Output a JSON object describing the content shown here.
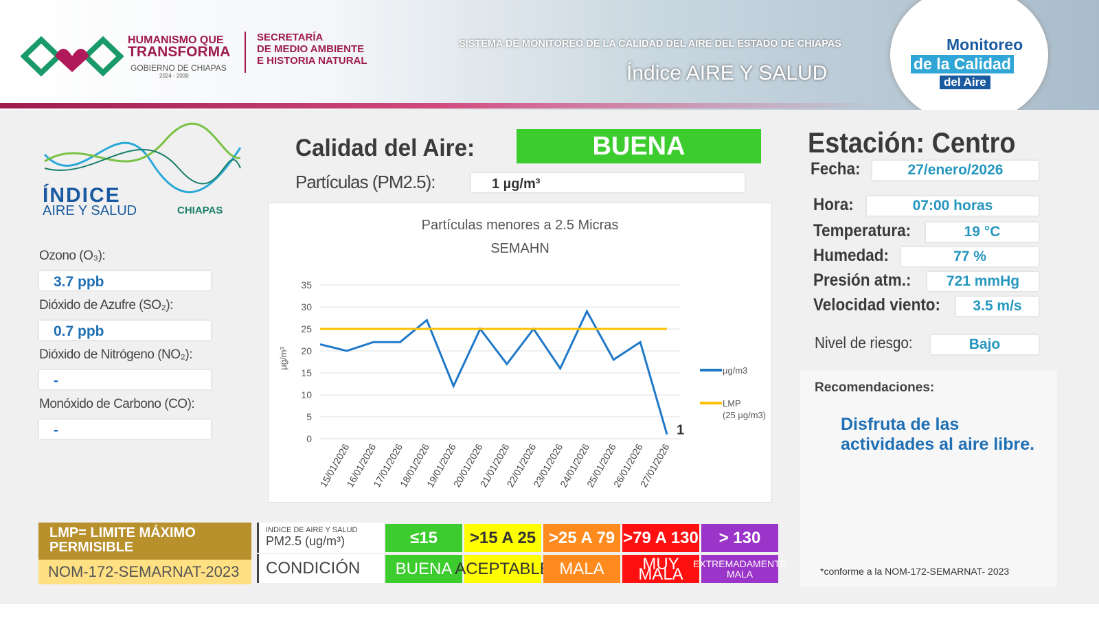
{
  "header": {
    "left_logo": [
      "HUMANISMO QUE",
      "TRANSFORMA",
      "GOBIERNO DE CHIAPAS",
      "2024 - 2030"
    ],
    "secretaria": [
      "SECRETARÍA",
      "DE MEDIO AMBIENTE",
      "E HISTORIA NATURAL"
    ],
    "system": "SISTEMA DE MONITOREO DE LA CALIDAD DEL AIRE DEL ESTADO DE CHIAPAS",
    "title": "Índice AIRE Y SALUD",
    "badge": [
      "Monitoreo",
      "de la Calidad",
      "del Aire"
    ]
  },
  "index_logo": [
    "ÍNDICE",
    "AIRE Y SALUD",
    "CHIAPAS"
  ],
  "pollutants": [
    {
      "label": "Ozono (O₃):",
      "value": "3.7 ppb"
    },
    {
      "label": "Dióxido de Azufre (SO₂):",
      "value": "0.7 ppb"
    },
    {
      "label": "Dióxido de Nitrógeno (NO₂):",
      "value": "-"
    },
    {
      "label": "Monóxido de Carbono (CO):",
      "value": "-"
    }
  ],
  "quality": {
    "label": "Calidad del Aire:",
    "value": "BUENA",
    "pm_label": "Partículas (PM2.5):",
    "pm_value": "1 µg/m³"
  },
  "chart_data": {
    "type": "line",
    "title": "Partículas menores a 2.5 Micras",
    "subtitle": "SEMAHN",
    "y_label": "µg/m³",
    "categories": [
      null,
      "15/01/2026",
      "16/01/2026",
      "17/01/2026",
      "18/01/2026",
      "19/01/2026",
      "20/01/2026",
      "21/01/2026",
      "22/01/2026",
      "23/01/2026",
      "24/01/2026",
      "25/01/2026",
      "26/01/2026",
      "27/01/2026"
    ],
    "series": [
      {
        "name": "µg/m3",
        "color": "#1f78c8",
        "values": [
          21.5,
          20,
          22,
          22,
          27,
          12,
          25,
          17,
          25,
          16,
          29,
          18,
          22,
          1
        ]
      },
      {
        "name": "LMP",
        "color": "#ffc000",
        "values": [
          25,
          25,
          25,
          25,
          25,
          25,
          25,
          25,
          25,
          25,
          25,
          25,
          25,
          25
        ]
      }
    ],
    "legend_note": "(25 µg/m3)",
    "ylim": [
      0,
      35
    ],
    "yticks": [
      0,
      5,
      10,
      15,
      20,
      25,
      30,
      35
    ],
    "grid": true
  },
  "station": {
    "title": "Estación: Centro",
    "fields": [
      {
        "label": "Fecha:",
        "value": "27/enero/2026"
      },
      {
        "label": "Hora:",
        "value": "07:00 horas"
      },
      {
        "label": "Temperatura:",
        "value": "19 °C"
      },
      {
        "label": "Humedad:",
        "value": "77 %"
      },
      {
        "label": "Presión atm.:",
        "value": "721 mmHg"
      },
      {
        "label": "Velocidad viento:",
        "value": "3.5 m/s"
      },
      {
        "label": "Nivel de riesgo:",
        "value": "Bajo"
      }
    ],
    "recommendations_label": "Recomendaciones:",
    "recommendation": "Disfruta de las actividades al aire libre.",
    "footnote": "*conforme a la NOM-172-SEMARNAT- 2023"
  },
  "lmp": {
    "title": "LMP= LIMITE MÁXIMO PERMISIBLE",
    "norm": "NOM-172-SEMARNAT-2023"
  },
  "scale": {
    "header": [
      "INDICE DE AIRE Y SALUD",
      "PM2.5 (ug/m³)"
    ],
    "condition_label": "CONDICIÓN",
    "levels": [
      {
        "range": "≤15",
        "condition": "BUENA",
        "color": "#3ccc2e"
      },
      {
        "range": ">15 A 25",
        "condition": "ACEPTABLE",
        "color": "#ffff00"
      },
      {
        "range": ">25 A 79",
        "condition": "MALA",
        "color": "#ff8a1e"
      },
      {
        "range": ">79 A 130",
        "condition": "MUY MALA",
        "color": "#ff1010"
      },
      {
        "range": "> 130",
        "condition": "EXTREMADAMENTE MALA",
        "color": "#9b34c8"
      }
    ]
  }
}
